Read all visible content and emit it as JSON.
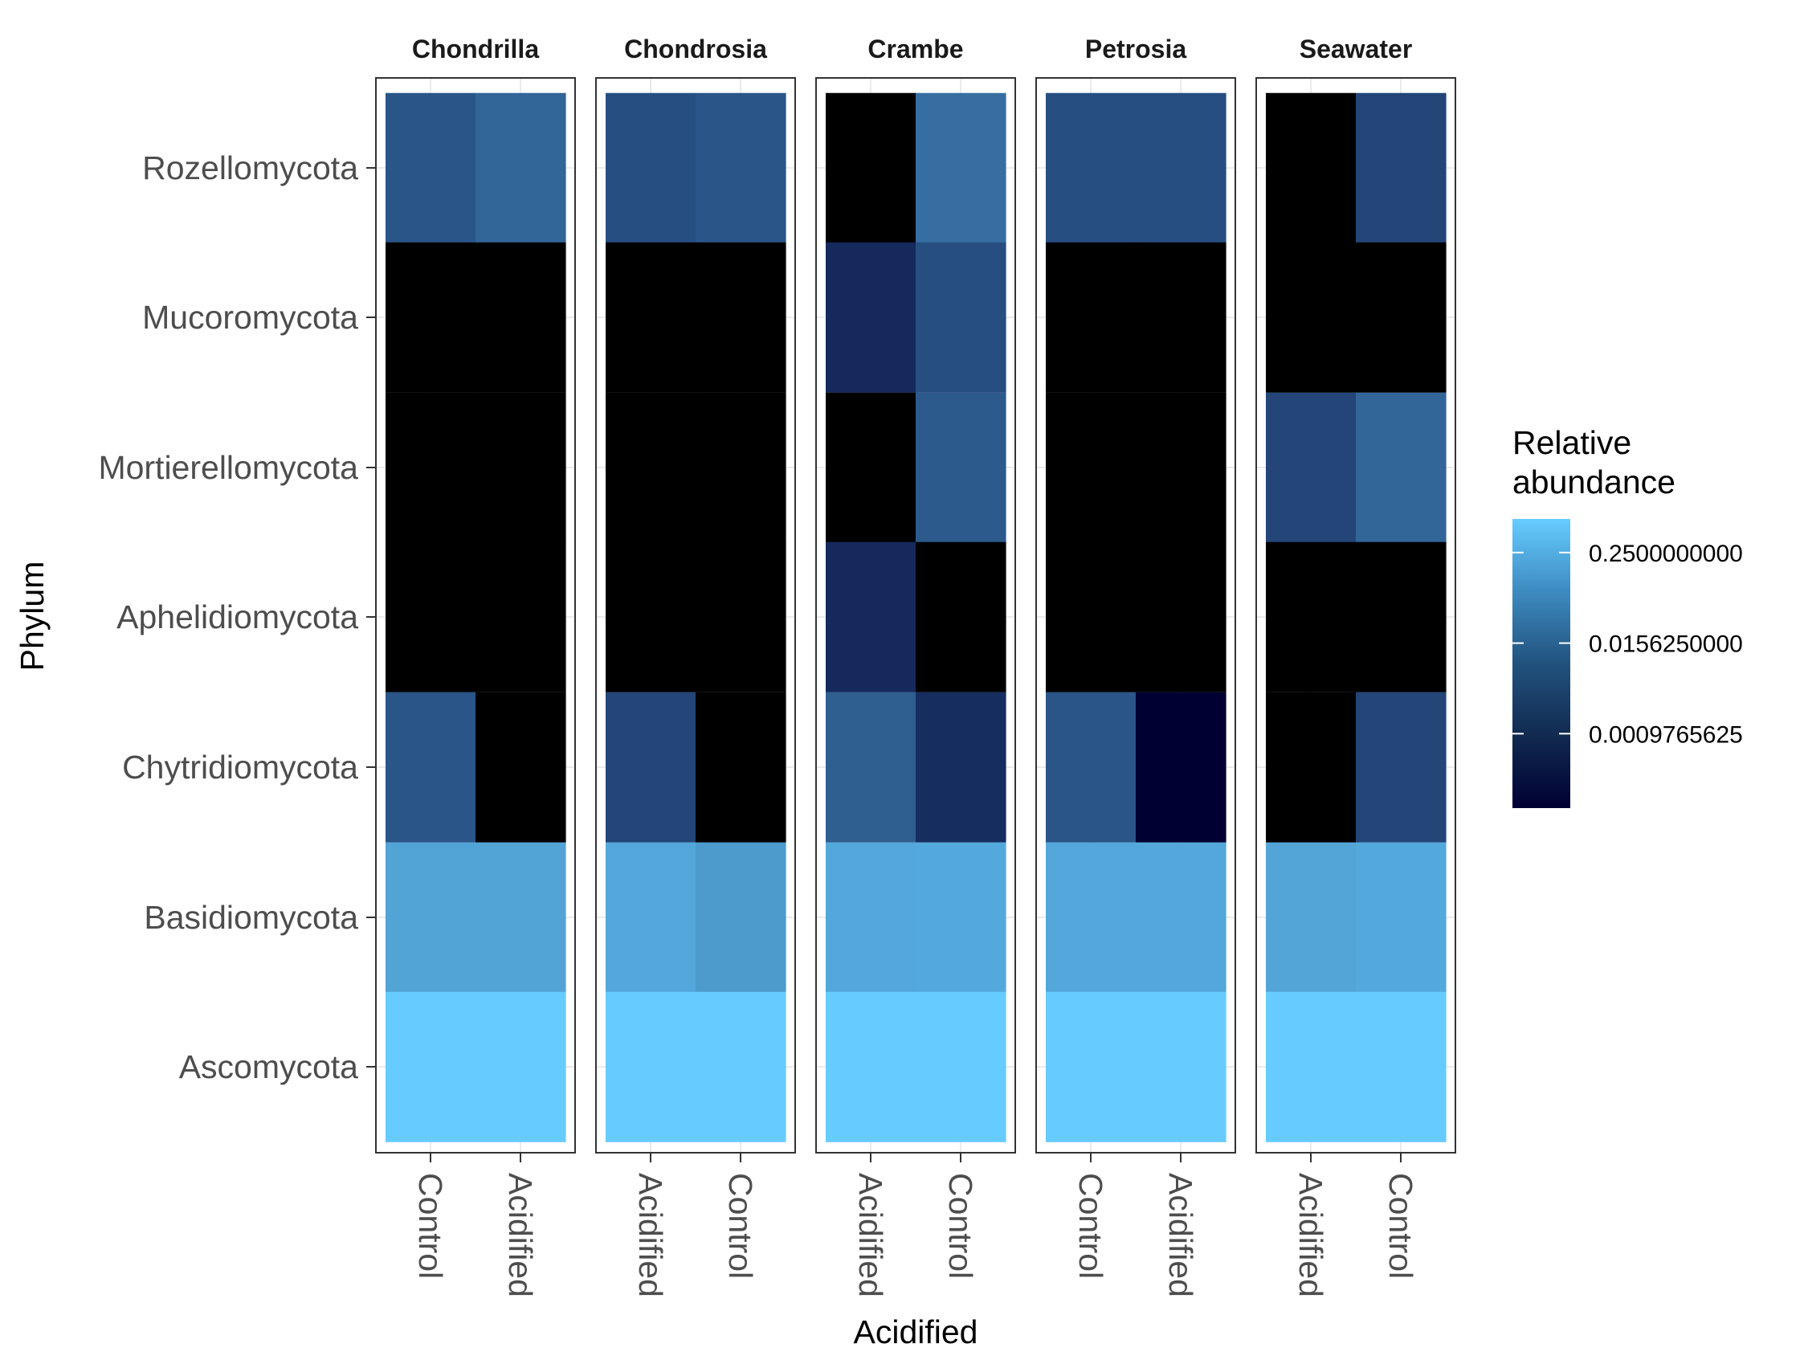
{
  "chart_data": {
    "type": "heatmap",
    "xlabel": "Acidified",
    "ylabel": "Phylum",
    "rows": [
      "Rozellomycota",
      "Mucoromycota",
      "Mortierellomycota",
      "Aphelidiomycota",
      "Chytridiomycota",
      "Basidiomycota",
      "Ascomycota"
    ],
    "facets": [
      {
        "name": "Chondrilla",
        "columns": [
          "Control",
          "Acidified"
        ],
        "values": [
          [
            0.004,
            0.008
          ],
          [
            0,
            0
          ],
          [
            0,
            0
          ],
          [
            0,
            0
          ],
          [
            0.004,
            0
          ],
          [
            0.12,
            0.12
          ],
          [
            0.7,
            0.7
          ]
        ]
      },
      {
        "name": "Chondrosia",
        "columns": [
          "Acidified",
          "Control"
        ],
        "values": [
          [
            0.003,
            0.004
          ],
          [
            0,
            0
          ],
          [
            0,
            0
          ],
          [
            0,
            0
          ],
          [
            0.002,
            0
          ],
          [
            0.14,
            0.08
          ],
          [
            0.7,
            0.7
          ]
        ]
      },
      {
        "name": "Crambe",
        "columns": [
          "Acidified",
          "Control"
        ],
        "values": [
          [
            0,
            0.012
          ],
          [
            0.0006,
            0.003
          ],
          [
            0,
            0.005
          ],
          [
            0.0006,
            0
          ],
          [
            0.006,
            0.0007
          ],
          [
            0.14,
            0.15
          ],
          [
            0.7,
            0.7
          ]
        ]
      },
      {
        "name": "Petrosia",
        "columns": [
          "Control",
          "Acidified"
        ],
        "values": [
          [
            0.003,
            0.003
          ],
          [
            0,
            0
          ],
          [
            0,
            0
          ],
          [
            0,
            0
          ],
          [
            0.004,
            0.0001
          ],
          [
            0.14,
            0.14
          ],
          [
            0.7,
            0.7
          ]
        ]
      },
      {
        "name": "Seawater",
        "columns": [
          "Acidified",
          "Control"
        ],
        "values": [
          [
            0,
            0.002
          ],
          [
            0,
            0
          ],
          [
            0.002,
            0.008
          ],
          [
            0,
            0
          ],
          [
            0,
            0.002
          ],
          [
            0.13,
            0.15
          ],
          [
            0.7,
            0.7
          ]
        ]
      }
    ],
    "legend": {
      "title": [
        "Relative",
        "abundance"
      ],
      "scale": "log",
      "ticks": [
        {
          "label": "0.2500000000",
          "value": 0.25
        },
        {
          "label": "0.0156250000",
          "value": 0.015625
        },
        {
          "label": "0.0009765625",
          "value": 0.0009765625
        }
      ],
      "position": "right",
      "colors": {
        "low": "#000033",
        "high": "#66ccff",
        "zero": "#000000"
      }
    },
    "grid": true
  }
}
